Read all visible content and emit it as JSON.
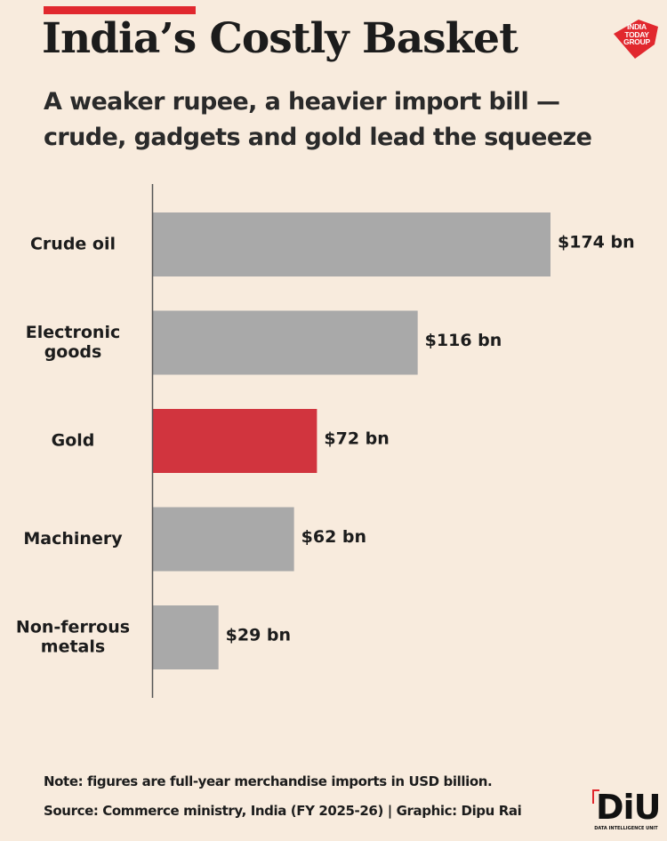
{
  "header": {
    "title": "India’s Costly Basket",
    "subtitle": "A weaker rupee, a heavier import bill — crude, gadgets and gold lead the squeeze"
  },
  "logo": {
    "icon": "india-today-group-logo",
    "lines": [
      "INDIA",
      "TODAY",
      "GROUP"
    ],
    "color": "#e1282e"
  },
  "chart_data": {
    "type": "bar",
    "orientation": "horizontal",
    "title": "India’s Costly Basket",
    "subtitle": "A weaker rupee, a heavier import bill — crude, gadgets and gold lead the squeeze",
    "unit": "USD billion",
    "categories": [
      [
        "Crude oil"
      ],
      [
        "Electronic",
        "goods"
      ],
      [
        "Gold"
      ],
      [
        "Machinery"
      ],
      [
        "Non-ferrous",
        "metals"
      ]
    ],
    "values": [
      174,
      116,
      72,
      62,
      29
    ],
    "value_labels": [
      "$174 bn",
      "$116 bn",
      "$72 bn",
      "$62 bn",
      "$29 bn"
    ],
    "highlight_index": 2,
    "colors": {
      "default": "#a9a9a9",
      "highlight": "#d1343e",
      "highlight_text": "#c4303a",
      "text": "#1c1c1c",
      "axis": "#555555"
    },
    "xlim": [
      0,
      174
    ],
    "grid": false,
    "legend": "none"
  },
  "footer": {
    "note": "Note: figures are full-year merchandise imports in USD billion.",
    "source": "Source: Commerce ministry, India (FY 2025-26) | Graphic: Dipu Rai"
  },
  "diu_logo": {
    "letters": "DiU",
    "subtitle": "DATA INTELLIGENCE UNIT",
    "icon": "diu-logo"
  }
}
